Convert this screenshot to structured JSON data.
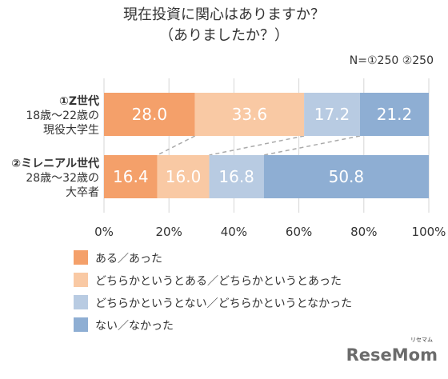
{
  "chart_data": {
    "type": "bar",
    "orientation": "horizontal",
    "stacked": true,
    "title": "現在投資に関心はありますか？",
    "subtitle": "（ありましたか？）",
    "note": "N=①250 ②250",
    "categories": [
      {
        "line1": "①Z世代",
        "line2": "18歳〜22歳の",
        "line3": "現役大学生"
      },
      {
        "line1": "②ミレニアル世代",
        "line2": "28歳〜32歳の",
        "line3": "大卒者"
      }
    ],
    "series": [
      {
        "name": "ある／あった",
        "color": "#f4a06a",
        "values": [
          28.0,
          16.4
        ]
      },
      {
        "name": "どちらかというとある／どちらかというとあった",
        "color": "#f9c9a4",
        "values": [
          33.6,
          16.0
        ]
      },
      {
        "name": "どちらかというとない／どちらかというとなかった",
        "color": "#b8cbe2",
        "values": [
          17.2,
          16.8
        ]
      },
      {
        "name": "ない／なかった",
        "color": "#8eaed3",
        "values": [
          21.2,
          50.8
        ]
      }
    ],
    "value_labels": [
      [
        "28.0",
        "33.6",
        "17.2",
        "21.2"
      ],
      [
        "16.4",
        "16.0",
        "16.8",
        "50.8"
      ]
    ],
    "xlim": [
      0,
      100
    ],
    "xticks": [
      "0%",
      "20%",
      "40%",
      "60%",
      "80%",
      "100%"
    ],
    "grid": true,
    "legend_position": "bottom-left"
  },
  "watermark": {
    "main": "ReseMom",
    "small": "リセマム"
  }
}
